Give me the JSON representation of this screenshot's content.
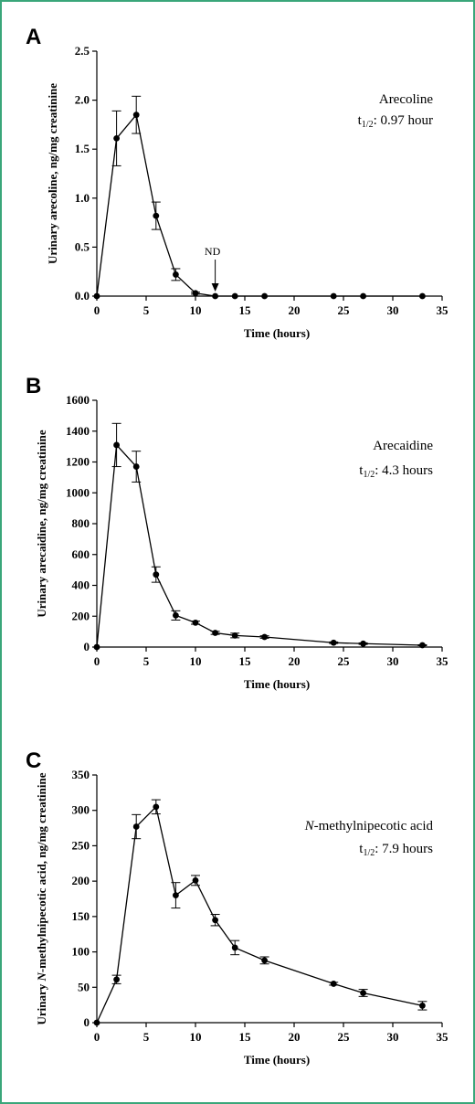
{
  "chart_data": [
    {
      "type": "line",
      "panel_label": "A",
      "xlabel": "Time (hours)",
      "ylabel": "Urinary arecoline, ng/mg creatinine",
      "xlim": [
        0,
        35
      ],
      "ylim": [
        0,
        2.5
      ],
      "xticks": [
        0,
        5,
        10,
        15,
        20,
        25,
        30,
        35
      ],
      "yticks": [
        0.0,
        0.5,
        1.0,
        1.5,
        2.0,
        2.5
      ],
      "ytick_labels": [
        "0.0",
        "0.5",
        "1.0",
        "1.5",
        "2.0",
        "2.5"
      ],
      "x": [
        0,
        2,
        4,
        6,
        8,
        10,
        12,
        14,
        17,
        24,
        27,
        33
      ],
      "y": [
        0,
        1.61,
        1.85,
        0.82,
        0.22,
        0.03,
        0,
        0,
        0,
        0,
        0,
        0
      ],
      "err": [
        0,
        0.28,
        0.19,
        0.14,
        0.06,
        0.01,
        0,
        0,
        0,
        0,
        0,
        0
      ],
      "annotation": {
        "name": "Arecoline",
        "half_life_prefix": "t",
        "half_life_sub": "1/2",
        "half_life_value": ": 0.97 hour"
      },
      "nd_label": "ND",
      "nd_x": 12
    },
    {
      "type": "line",
      "panel_label": "B",
      "xlabel": "Time (hours)",
      "ylabel": "Urinary arecaidine, ng/mg creatinine",
      "xlim": [
        0,
        35
      ],
      "ylim": [
        0,
        1600
      ],
      "xticks": [
        0,
        5,
        10,
        15,
        20,
        25,
        30,
        35
      ],
      "yticks": [
        0,
        200,
        400,
        600,
        800,
        1000,
        1200,
        1400,
        1600
      ],
      "ytick_labels": [
        "0",
        "200",
        "400",
        "600",
        "800",
        "1000",
        "1200",
        "1400",
        "1600"
      ],
      "x": [
        0,
        2,
        4,
        6,
        8,
        10,
        12,
        14,
        17,
        24,
        27,
        33
      ],
      "y": [
        0,
        1310,
        1170,
        470,
        205,
        158,
        92,
        75,
        65,
        28,
        22,
        12
      ],
      "err": [
        0,
        140,
        100,
        50,
        30,
        10,
        10,
        15,
        8,
        5,
        5,
        3
      ],
      "annotation": {
        "name": "Arecaidine",
        "half_life_prefix": "t",
        "half_life_sub": "1/2",
        "half_life_value": ": 4.3 hours"
      }
    },
    {
      "type": "line",
      "panel_label": "C",
      "xlabel": "Time (hours)",
      "ylabel_prefix": "Urinary ",
      "ylabel_italic": "N",
      "ylabel_suffix": "-methylnipecotic acid, ng/mg creatinine",
      "xlim": [
        0,
        35
      ],
      "ylim": [
        0,
        350
      ],
      "xticks": [
        0,
        5,
        10,
        15,
        20,
        25,
        30,
        35
      ],
      "yticks": [
        0,
        50,
        100,
        150,
        200,
        250,
        300,
        350
      ],
      "ytick_labels": [
        "0",
        "50",
        "100",
        "150",
        "200",
        "250",
        "300",
        "350"
      ],
      "x": [
        0,
        2,
        4,
        6,
        8,
        10,
        12,
        14,
        17,
        24,
        27,
        33
      ],
      "y": [
        0,
        61,
        277,
        305,
        180,
        201,
        145,
        106,
        88,
        55,
        42,
        24
      ],
      "err": [
        0,
        6,
        17,
        10,
        18,
        7,
        8,
        10,
        5,
        2,
        5,
        6
      ],
      "annotation": {
        "name_italic": "N",
        "name_rest": "-methylnipecotic acid",
        "half_life_prefix": "t",
        "half_life_sub": "1/2",
        "half_life_value": ": 7.9 hours"
      }
    }
  ]
}
